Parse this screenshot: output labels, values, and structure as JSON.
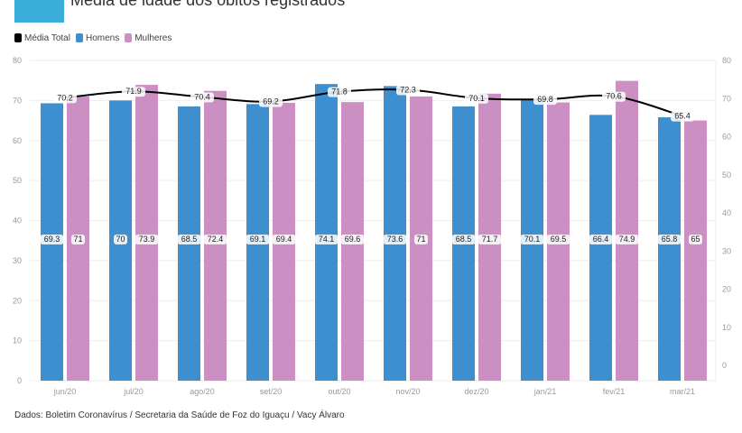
{
  "title": "Média de idade dos óbitos registrados",
  "source": "Dados: Boletim Coronavírus / Secretaria da Saúde de Foz do Iguaçu / Vacy Álvaro",
  "chart_data": {
    "type": "bar",
    "title": "Média de idade dos óbitos registrados",
    "categories": [
      "jun/20",
      "jul/20",
      "ago/20",
      "set/20",
      "out/20",
      "nov/20",
      "dez/20",
      "jan/21",
      "fev/21",
      "mar/21"
    ],
    "series": [
      {
        "name": "Homens",
        "type": "bar",
        "color": "#3d8fcf",
        "values": [
          69.3,
          70,
          68.5,
          69.1,
          74.1,
          73.6,
          68.5,
          70.1,
          66.4,
          65.8
        ]
      },
      {
        "name": "Mulheres",
        "type": "bar",
        "color": "#cc8fc3",
        "values": [
          71,
          73.9,
          72.4,
          69.4,
          69.6,
          71,
          71.7,
          69.5,
          74.9,
          65
        ]
      },
      {
        "name": "Média Total",
        "type": "line",
        "color": "#000000",
        "axis": "right",
        "values": [
          70.2,
          71.9,
          70.4,
          69.2,
          71.8,
          72.3,
          70.1,
          69.8,
          70.6,
          65.4
        ]
      }
    ],
    "yticks": [
      0,
      10,
      20,
      30,
      40,
      50,
      60,
      70,
      80
    ],
    "ylim": [
      0,
      80
    ],
    "y2lim": [
      0,
      80
    ],
    "grid": true,
    "legend": "top-left"
  }
}
